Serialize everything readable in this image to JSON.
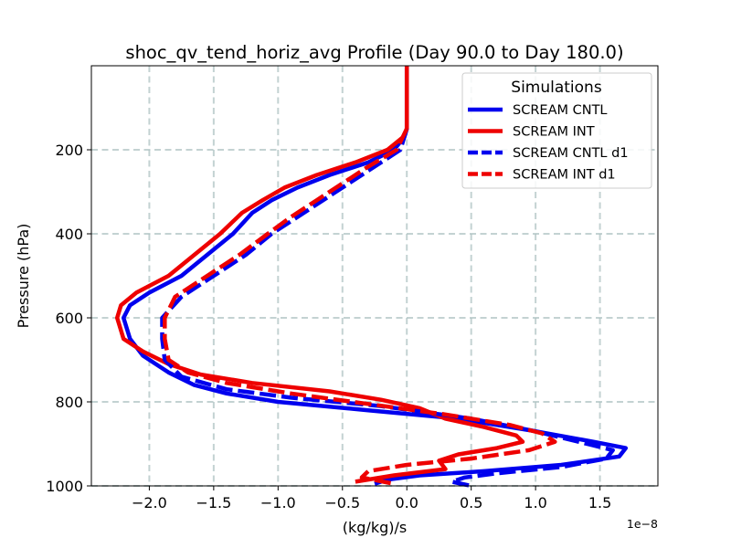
{
  "chart_data": {
    "type": "line",
    "title": "shoc_qv_tend_horiz_avg Profile (Day 90.0 to Day 180.0)",
    "xlabel": "(kg/kg)/s",
    "ylabel": "Pressure (hPa)",
    "x_offset_label": "1e−8",
    "x_scale": 1e-08,
    "xlim": [
      -2.45,
      1.95
    ],
    "ylim": [
      1000,
      0
    ],
    "y_inverted": true,
    "xticks": [
      -2.0,
      -1.5,
      -1.0,
      -0.5,
      0.0,
      0.5,
      1.0,
      1.5
    ],
    "xtick_labels": [
      "−2.0",
      "−1.5",
      "−1.0",
      "−0.5",
      "0.0",
      "0.5",
      "1.0",
      "1.5"
    ],
    "yticks": [
      200,
      400,
      600,
      800,
      1000
    ],
    "ytick_labels": [
      "200",
      "400",
      "600",
      "800",
      "1000"
    ],
    "grid": true,
    "legend": {
      "title": "Simulations",
      "placement": "top-right"
    },
    "series": [
      {
        "name": "SCREAM CNTL",
        "color": "#0000ee",
        "style": "solid",
        "points": [
          [
            0.0,
            0
          ],
          [
            0.0,
            50
          ],
          [
            0.0,
            100
          ],
          [
            0.0,
            150
          ],
          [
            -0.02,
            170
          ],
          [
            -0.1,
            200
          ],
          [
            -0.3,
            230
          ],
          [
            -0.6,
            260
          ],
          [
            -0.85,
            290
          ],
          [
            -1.05,
            320
          ],
          [
            -1.2,
            350
          ],
          [
            -1.35,
            400
          ],
          [
            -1.55,
            450
          ],
          [
            -1.75,
            500
          ],
          [
            -2.0,
            540
          ],
          [
            -2.15,
            570
          ],
          [
            -2.2,
            600
          ],
          [
            -2.15,
            650
          ],
          [
            -2.05,
            690
          ],
          [
            -1.85,
            730
          ],
          [
            -1.65,
            760
          ],
          [
            -1.4,
            780
          ],
          [
            -1.0,
            800
          ],
          [
            -0.3,
            820
          ],
          [
            0.4,
            840
          ],
          [
            1.0,
            870
          ],
          [
            1.45,
            895
          ],
          [
            1.7,
            910
          ],
          [
            1.65,
            930
          ],
          [
            1.2,
            950
          ],
          [
            0.6,
            965
          ],
          [
            0.1,
            975
          ],
          [
            -0.15,
            985
          ],
          [
            -0.25,
            995
          ]
        ]
      },
      {
        "name": "SCREAM INT",
        "color": "#ee0000",
        "style": "solid",
        "points": [
          [
            0.0,
            0
          ],
          [
            0.0,
            50
          ],
          [
            0.0,
            100
          ],
          [
            0.0,
            150
          ],
          [
            -0.03,
            170
          ],
          [
            -0.15,
            200
          ],
          [
            -0.4,
            230
          ],
          [
            -0.7,
            260
          ],
          [
            -0.95,
            290
          ],
          [
            -1.12,
            320
          ],
          [
            -1.28,
            350
          ],
          [
            -1.45,
            400
          ],
          [
            -1.65,
            450
          ],
          [
            -1.85,
            500
          ],
          [
            -2.1,
            540
          ],
          [
            -2.22,
            570
          ],
          [
            -2.25,
            600
          ],
          [
            -2.2,
            650
          ],
          [
            -2.05,
            680
          ],
          [
            -1.85,
            710
          ],
          [
            -1.6,
            735
          ],
          [
            -1.2,
            755
          ],
          [
            -0.6,
            775
          ],
          [
            -0.2,
            795
          ],
          [
            0.1,
            815
          ],
          [
            0.3,
            840
          ],
          [
            0.6,
            860
          ],
          [
            0.85,
            880
          ],
          [
            0.9,
            895
          ],
          [
            0.7,
            910
          ],
          [
            0.4,
            925
          ],
          [
            0.25,
            940
          ],
          [
            0.3,
            960
          ],
          [
            -0.1,
            975
          ],
          [
            -0.4,
            990
          ]
        ]
      },
      {
        "name": "SCREAM CNTL d1",
        "color": "#0000ee",
        "style": "dashed",
        "points": [
          [
            0.0,
            150
          ],
          [
            -0.05,
            200
          ],
          [
            -0.25,
            240
          ],
          [
            -0.45,
            280
          ],
          [
            -0.65,
            320
          ],
          [
            -0.85,
            360
          ],
          [
            -1.05,
            400
          ],
          [
            -1.25,
            450
          ],
          [
            -1.5,
            500
          ],
          [
            -1.75,
            550
          ],
          [
            -1.9,
            600
          ],
          [
            -1.9,
            650
          ],
          [
            -1.88,
            700
          ],
          [
            -1.75,
            740
          ],
          [
            -1.4,
            770
          ],
          [
            -0.9,
            790
          ],
          [
            -0.2,
            810
          ],
          [
            0.5,
            840
          ],
          [
            1.0,
            870
          ],
          [
            1.4,
            900
          ],
          [
            1.6,
            915
          ],
          [
            1.55,
            935
          ],
          [
            1.2,
            955
          ],
          [
            0.7,
            970
          ],
          [
            0.45,
            980
          ],
          [
            0.35,
            990
          ],
          [
            0.5,
            1000
          ]
        ]
      },
      {
        "name": "SCREAM INT d1",
        "color": "#ee0000",
        "style": "dashed",
        "points": [
          [
            0.0,
            150
          ],
          [
            -0.08,
            200
          ],
          [
            -0.3,
            240
          ],
          [
            -0.5,
            280
          ],
          [
            -0.7,
            320
          ],
          [
            -0.9,
            360
          ],
          [
            -1.08,
            400
          ],
          [
            -1.3,
            450
          ],
          [
            -1.55,
            500
          ],
          [
            -1.8,
            550
          ],
          [
            -1.88,
            600
          ],
          [
            -1.88,
            650
          ],
          [
            -1.85,
            700
          ],
          [
            -1.7,
            730
          ],
          [
            -1.4,
            755
          ],
          [
            -0.9,
            780
          ],
          [
            -0.3,
            805
          ],
          [
            0.3,
            830
          ],
          [
            0.8,
            855
          ],
          [
            1.05,
            875
          ],
          [
            1.15,
            895
          ],
          [
            0.95,
            915
          ],
          [
            0.5,
            935
          ],
          [
            0.0,
            950
          ],
          [
            -0.3,
            965
          ],
          [
            -0.35,
            980
          ],
          [
            -0.1,
            995
          ]
        ]
      }
    ]
  }
}
